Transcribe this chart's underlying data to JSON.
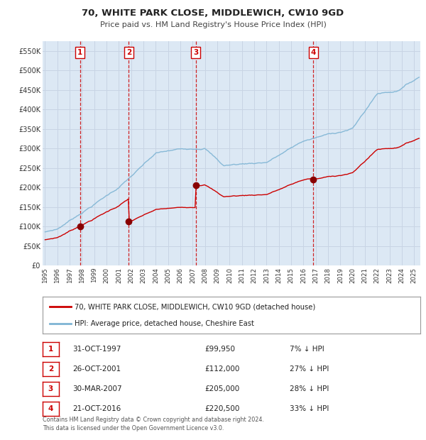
{
  "title": "70, WHITE PARK CLOSE, MIDDLEWICH, CW10 9GD",
  "subtitle": "Price paid vs. HM Land Registry's House Price Index (HPI)",
  "ylim": [
    0,
    575000
  ],
  "yticks": [
    0,
    50000,
    100000,
    150000,
    200000,
    250000,
    300000,
    350000,
    400000,
    450000,
    500000,
    550000
  ],
  "ytick_labels": [
    "£0",
    "£50K",
    "£100K",
    "£150K",
    "£200K",
    "£250K",
    "£300K",
    "£350K",
    "£400K",
    "£450K",
    "£500K",
    "£550K"
  ],
  "xlim_start": 1994.8,
  "xlim_end": 2025.5,
  "hpi_color": "#7eb4d4",
  "price_color": "#cc0000",
  "grid_color": "#c8d4e4",
  "bg_color": "#dce8f4",
  "sale_dates": [
    1997.83,
    2001.81,
    2007.24,
    2016.8
  ],
  "sale_prices": [
    99950,
    112000,
    205000,
    220500
  ],
  "sale_labels": [
    "1",
    "2",
    "3",
    "4"
  ],
  "legend_line1": "70, WHITE PARK CLOSE, MIDDLEWICH, CW10 9GD (detached house)",
  "legend_line2": "HPI: Average price, detached house, Cheshire East",
  "table_entries": [
    {
      "num": "1",
      "date": "31-OCT-1997",
      "price": "£99,950",
      "note": "7% ↓ HPI"
    },
    {
      "num": "2",
      "date": "26-OCT-2001",
      "price": "£112,000",
      "note": "27% ↓ HPI"
    },
    {
      "num": "3",
      "date": "30-MAR-2007",
      "price": "£205,000",
      "note": "28% ↓ HPI"
    },
    {
      "num": "4",
      "date": "21-OCT-2016",
      "price": "£220,500",
      "note": "33% ↓ HPI"
    }
  ],
  "footnote": "Contains HM Land Registry data © Crown copyright and database right 2024.\nThis data is licensed under the Open Government Licence v3.0."
}
